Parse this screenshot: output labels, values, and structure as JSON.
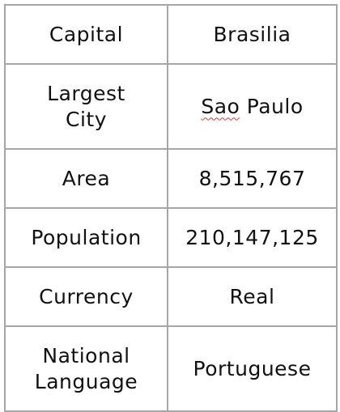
{
  "table": {
    "rows": [
      {
        "label_lines": [
          "Capital"
        ],
        "value": "Brasilia"
      },
      {
        "label_lines": [
          "Largest",
          "City"
        ],
        "value_parts": [
          "Sao",
          " Paulo"
        ]
      },
      {
        "label_lines": [
          "Area"
        ],
        "value": "8,515,767"
      },
      {
        "label_lines": [
          "Population"
        ],
        "value": "210,147,125"
      },
      {
        "label_lines": [
          "Currency"
        ],
        "value": "Real"
      },
      {
        "label_lines": [
          "National",
          "Language"
        ],
        "value": "Portuguese"
      }
    ]
  },
  "colors": {
    "border": "#a6a6a6",
    "spellcheck_underline": "#d23b3b"
  }
}
